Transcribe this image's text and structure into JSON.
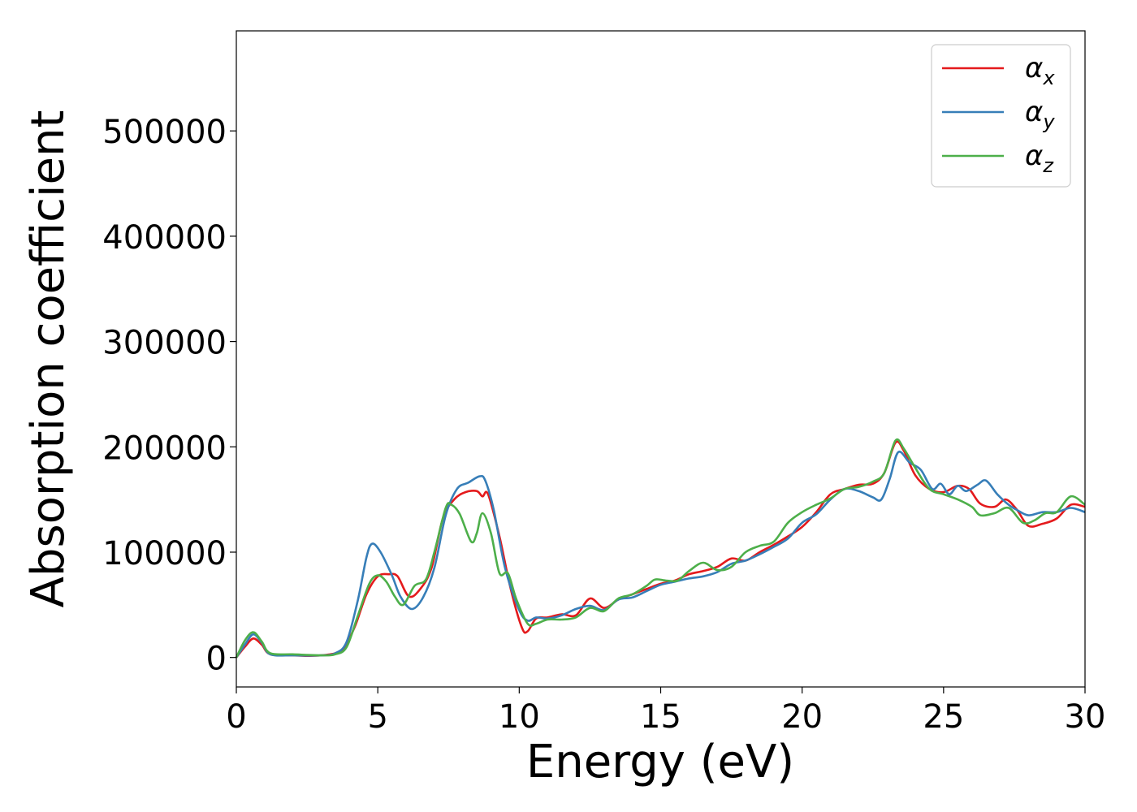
{
  "chart_data": {
    "type": "line",
    "xlabel": "Energy (eV)",
    "ylabel": "Absorption coefficient",
    "xlim": [
      0,
      30
    ],
    "ylim": [
      -28000,
      595000
    ],
    "xticks": [
      0,
      5,
      10,
      15,
      20,
      25,
      30
    ],
    "yticks": [
      0,
      100000,
      200000,
      300000,
      400000,
      500000
    ],
    "grid": false,
    "legend_position": "top-right",
    "series": [
      {
        "name": "α_x",
        "base": "α",
        "sub": "x",
        "color": "#e41a1c",
        "points": [
          [
            0,
            0
          ],
          [
            0.3,
            10000
          ],
          [
            0.6,
            18000
          ],
          [
            0.9,
            12000
          ],
          [
            1.2,
            3000
          ],
          [
            2,
            2000
          ],
          [
            2.5,
            1500
          ],
          [
            3,
            2000
          ],
          [
            3.5,
            4000
          ],
          [
            3.8,
            9000
          ],
          [
            4.2,
            30000
          ],
          [
            4.6,
            60000
          ],
          [
            5,
            77000
          ],
          [
            5.4,
            79000
          ],
          [
            5.7,
            77000
          ],
          [
            6.1,
            58000
          ],
          [
            6.5,
            65000
          ],
          [
            6.9,
            85000
          ],
          [
            7.3,
            132000
          ],
          [
            7.7,
            150000
          ],
          [
            8.1,
            157000
          ],
          [
            8.5,
            158000
          ],
          [
            8.7,
            153000
          ],
          [
            8.9,
            155000
          ],
          [
            9.3,
            115000
          ],
          [
            9.7,
            65000
          ],
          [
            10.1,
            28000
          ],
          [
            10.3,
            25000
          ],
          [
            10.6,
            37000
          ],
          [
            11,
            38000
          ],
          [
            11.5,
            41000
          ],
          [
            12,
            40000
          ],
          [
            12.5,
            56000
          ],
          [
            13,
            47000
          ],
          [
            13.5,
            55000
          ],
          [
            14,
            60000
          ],
          [
            14.5,
            65000
          ],
          [
            15,
            70000
          ],
          [
            15.5,
            73000
          ],
          [
            16,
            79000
          ],
          [
            16.5,
            82000
          ],
          [
            17,
            86000
          ],
          [
            17.5,
            94000
          ],
          [
            18,
            92000
          ],
          [
            18.5,
            100000
          ],
          [
            19,
            107000
          ],
          [
            19.5,
            115000
          ],
          [
            20,
            124000
          ],
          [
            20.5,
            138000
          ],
          [
            21,
            155000
          ],
          [
            21.5,
            160000
          ],
          [
            22,
            164000
          ],
          [
            22.5,
            165000
          ],
          [
            22.9,
            175000
          ],
          [
            23.3,
            204000
          ],
          [
            23.6,
            196000
          ],
          [
            24,
            173000
          ],
          [
            24.5,
            160000
          ],
          [
            25,
            157000
          ],
          [
            25.5,
            163000
          ],
          [
            25.9,
            160000
          ],
          [
            26.3,
            146000
          ],
          [
            26.8,
            143000
          ],
          [
            27.2,
            150000
          ],
          [
            27.6,
            140000
          ],
          [
            28,
            125000
          ],
          [
            28.5,
            127000
          ],
          [
            29,
            132000
          ],
          [
            29.5,
            145000
          ],
          [
            30,
            143000
          ]
        ]
      },
      {
        "name": "α_y",
        "base": "α",
        "sub": "y",
        "color": "#377eb8",
        "points": [
          [
            0,
            0
          ],
          [
            0.3,
            12000
          ],
          [
            0.6,
            22000
          ],
          [
            0.9,
            14000
          ],
          [
            1.2,
            3000
          ],
          [
            2,
            2000
          ],
          [
            3,
            2000
          ],
          [
            3.5,
            4000
          ],
          [
            3.9,
            15000
          ],
          [
            4.3,
            55000
          ],
          [
            4.6,
            95000
          ],
          [
            4.8,
            108000
          ],
          [
            5.1,
            100000
          ],
          [
            5.5,
            78000
          ],
          [
            5.8,
            58000
          ],
          [
            6.2,
            46000
          ],
          [
            6.6,
            57000
          ],
          [
            7,
            85000
          ],
          [
            7.4,
            135000
          ],
          [
            7.8,
            160000
          ],
          [
            8.2,
            166000
          ],
          [
            8.6,
            172000
          ],
          [
            8.8,
            168000
          ],
          [
            9.1,
            140000
          ],
          [
            9.5,
            85000
          ],
          [
            10,
            45000
          ],
          [
            10.3,
            35000
          ],
          [
            10.6,
            38000
          ],
          [
            11,
            37000
          ],
          [
            11.5,
            40000
          ],
          [
            12,
            46000
          ],
          [
            12.5,
            49000
          ],
          [
            13,
            45000
          ],
          [
            13.5,
            55000
          ],
          [
            14,
            57000
          ],
          [
            14.5,
            63000
          ],
          [
            15,
            69000
          ],
          [
            15.5,
            72000
          ],
          [
            16,
            75000
          ],
          [
            16.5,
            77000
          ],
          [
            17,
            81000
          ],
          [
            17.5,
            89000
          ],
          [
            18,
            92000
          ],
          [
            18.5,
            98000
          ],
          [
            19,
            105000
          ],
          [
            19.5,
            113000
          ],
          [
            20,
            128000
          ],
          [
            20.5,
            136000
          ],
          [
            21,
            150000
          ],
          [
            21.5,
            160000
          ],
          [
            22,
            158000
          ],
          [
            22.5,
            152000
          ],
          [
            22.8,
            150000
          ],
          [
            23.1,
            170000
          ],
          [
            23.4,
            195000
          ],
          [
            23.8,
            185000
          ],
          [
            24.2,
            178000
          ],
          [
            24.6,
            160000
          ],
          [
            24.9,
            165000
          ],
          [
            25.2,
            155000
          ],
          [
            25.5,
            163000
          ],
          [
            25.8,
            158000
          ],
          [
            26.2,
            164000
          ],
          [
            26.5,
            168000
          ],
          [
            26.9,
            155000
          ],
          [
            27.3,
            145000
          ],
          [
            27.6,
            140000
          ],
          [
            28,
            135000
          ],
          [
            28.5,
            138000
          ],
          [
            29,
            138000
          ],
          [
            29.5,
            142000
          ],
          [
            30,
            138000
          ]
        ]
      },
      {
        "name": "α_z",
        "base": "α",
        "sub": "z",
        "color": "#4daf4a",
        "points": [
          [
            0,
            0
          ],
          [
            0.3,
            16000
          ],
          [
            0.6,
            24000
          ],
          [
            0.9,
            15000
          ],
          [
            1.2,
            4000
          ],
          [
            2,
            3000
          ],
          [
            3,
            2000
          ],
          [
            3.5,
            3000
          ],
          [
            3.9,
            10000
          ],
          [
            4.3,
            40000
          ],
          [
            4.7,
            70000
          ],
          [
            5,
            78000
          ],
          [
            5.3,
            72000
          ],
          [
            5.6,
            58000
          ],
          [
            5.9,
            50000
          ],
          [
            6.3,
            68000
          ],
          [
            6.7,
            74000
          ],
          [
            7,
            100000
          ],
          [
            7.4,
            142000
          ],
          [
            7.6,
            145000
          ],
          [
            7.9,
            136000
          ],
          [
            8.3,
            110000
          ],
          [
            8.5,
            118000
          ],
          [
            8.7,
            137000
          ],
          [
            9,
            118000
          ],
          [
            9.3,
            80000
          ],
          [
            9.6,
            80000
          ],
          [
            9.9,
            55000
          ],
          [
            10.3,
            32000
          ],
          [
            10.6,
            32000
          ],
          [
            11,
            36000
          ],
          [
            11.5,
            36000
          ],
          [
            12,
            38000
          ],
          [
            12.5,
            47000
          ],
          [
            13,
            44000
          ],
          [
            13.5,
            56000
          ],
          [
            14,
            60000
          ],
          [
            14.5,
            68000
          ],
          [
            14.8,
            74000
          ],
          [
            15.2,
            73000
          ],
          [
            15.6,
            73000
          ],
          [
            16,
            82000
          ],
          [
            16.5,
            90000
          ],
          [
            17,
            83000
          ],
          [
            17.5,
            86000
          ],
          [
            18,
            100000
          ],
          [
            18.5,
            106000
          ],
          [
            19,
            110000
          ],
          [
            19.5,
            128000
          ],
          [
            20,
            138000
          ],
          [
            20.5,
            145000
          ],
          [
            21,
            151000
          ],
          [
            21.5,
            160000
          ],
          [
            22,
            162000
          ],
          [
            22.5,
            167000
          ],
          [
            22.9,
            175000
          ],
          [
            23.3,
            206000
          ],
          [
            23.6,
            198000
          ],
          [
            24,
            180000
          ],
          [
            24.5,
            160000
          ],
          [
            25,
            155000
          ],
          [
            25.5,
            150000
          ],
          [
            26,
            143000
          ],
          [
            26.3,
            135000
          ],
          [
            26.8,
            137000
          ],
          [
            27.3,
            142000
          ],
          [
            27.8,
            128000
          ],
          [
            28.2,
            130000
          ],
          [
            28.6,
            137000
          ],
          [
            29,
            138000
          ],
          [
            29.5,
            153000
          ],
          [
            30,
            145000
          ]
        ]
      }
    ]
  }
}
